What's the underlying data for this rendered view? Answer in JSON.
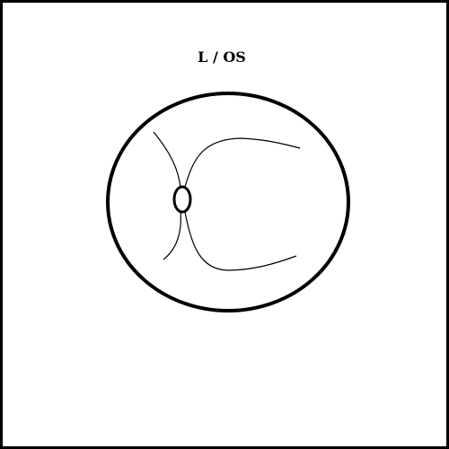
{
  "diagram": {
    "eye_label": "L / OS",
    "colors": {
      "frame": "#000000",
      "background": "#ffffff",
      "stroke": "#000000"
    }
  }
}
